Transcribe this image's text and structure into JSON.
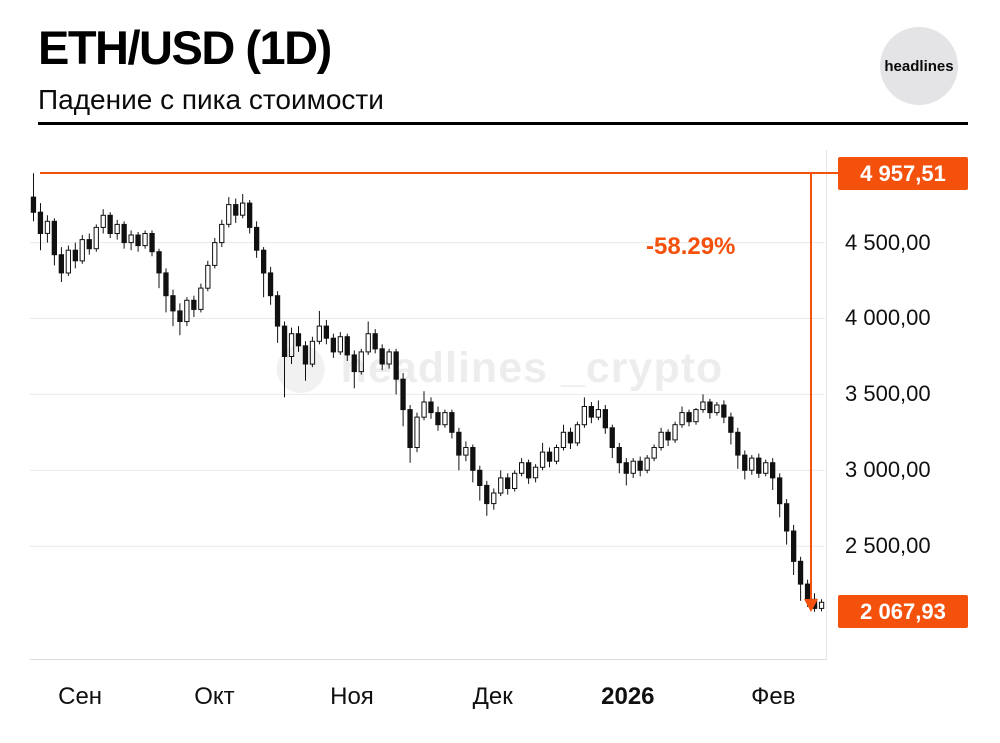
{
  "header": {
    "title": "ETH/USD (1D)",
    "subtitle": "Падение с пика стоимости"
  },
  "logo": {
    "text": "headlines"
  },
  "watermark": {
    "text": "headlines _crypto"
  },
  "colors": {
    "accent": "#f4510c",
    "grid": "#e9e9e9",
    "candle_up": "#ffffff",
    "candle_down": "#111111",
    "wick": "#111111",
    "axis_text": "#101010"
  },
  "chart_data": {
    "type": "candlestick",
    "symbol": "ETH/USD",
    "interval": "1D",
    "title": "ETH/USD (1D)",
    "ylim": [
      1750,
      5110
    ],
    "grid": true,
    "y_ticks": [
      {
        "label": "4 500,00",
        "value": 4500
      },
      {
        "label": "4 000,00",
        "value": 4000
      },
      {
        "label": "3 500,00",
        "value": 3500
      },
      {
        "label": "3 000,00",
        "value": 3000
      },
      {
        "label": "2 500,00",
        "value": 2500
      }
    ],
    "x_ticks": [
      {
        "label": "Сен",
        "pos": 0.063,
        "bold": false
      },
      {
        "label": "Окт",
        "pos": 0.232,
        "bold": false
      },
      {
        "label": "Ноя",
        "pos": 0.405,
        "bold": false
      },
      {
        "label": "Дек",
        "pos": 0.582,
        "bold": false
      },
      {
        "label": "2026",
        "pos": 0.752,
        "bold": true
      },
      {
        "label": "Фев",
        "pos": 0.935,
        "bold": false
      }
    ],
    "peak": {
      "label": "4 957,51",
      "value": 4957.51
    },
    "trough": {
      "label": "2 067,93",
      "value": 2067.93
    },
    "change_label": "-58.29%",
    "candles": [
      [
        4800,
        4957,
        4640,
        4700
      ],
      [
        4700,
        4760,
        4450,
        4560
      ],
      [
        4560,
        4680,
        4500,
        4640
      ],
      [
        4640,
        4660,
        4350,
        4420
      ],
      [
        4420,
        4470,
        4240,
        4300
      ],
      [
        4300,
        4480,
        4280,
        4450
      ],
      [
        4450,
        4500,
        4330,
        4380
      ],
      [
        4380,
        4550,
        4360,
        4520
      ],
      [
        4520,
        4560,
        4420,
        4460
      ],
      [
        4460,
        4620,
        4440,
        4600
      ],
      [
        4600,
        4720,
        4560,
        4680
      ],
      [
        4680,
        4700,
        4530,
        4560
      ],
      [
        4560,
        4650,
        4520,
        4620
      ],
      [
        4620,
        4640,
        4460,
        4500
      ],
      [
        4500,
        4580,
        4450,
        4550
      ],
      [
        4550,
        4570,
        4440,
        4480
      ],
      [
        4480,
        4580,
        4460,
        4560
      ],
      [
        4560,
        4580,
        4410,
        4440
      ],
      [
        4440,
        4460,
        4200,
        4300
      ],
      [
        4300,
        4330,
        4040,
        4150
      ],
      [
        4150,
        4190,
        3950,
        4050
      ],
      [
        4050,
        4100,
        3890,
        3980
      ],
      [
        3980,
        4140,
        3950,
        4120
      ],
      [
        4120,
        4150,
        4010,
        4060
      ],
      [
        4060,
        4230,
        4040,
        4200
      ],
      [
        4200,
        4380,
        4180,
        4350
      ],
      [
        4350,
        4530,
        4330,
        4500
      ],
      [
        4500,
        4650,
        4470,
        4620
      ],
      [
        4620,
        4800,
        4600,
        4750
      ],
      [
        4750,
        4790,
        4630,
        4680
      ],
      [
        4680,
        4820,
        4660,
        4760
      ],
      [
        4760,
        4780,
        4560,
        4600
      ],
      [
        4600,
        4640,
        4400,
        4450
      ],
      [
        4450,
        4470,
        4140,
        4300
      ],
      [
        4300,
        4340,
        4090,
        4150
      ],
      [
        4150,
        4180,
        3840,
        3950
      ],
      [
        3950,
        3980,
        3480,
        3750
      ],
      [
        3750,
        3940,
        3700,
        3900
      ],
      [
        3900,
        3950,
        3780,
        3820
      ],
      [
        3820,
        3850,
        3590,
        3700
      ],
      [
        3700,
        3880,
        3680,
        3850
      ],
      [
        3850,
        4050,
        3830,
        3950
      ],
      [
        3950,
        3990,
        3830,
        3870
      ],
      [
        3870,
        3900,
        3740,
        3780
      ],
      [
        3780,
        3910,
        3760,
        3880
      ],
      [
        3880,
        3900,
        3720,
        3760
      ],
      [
        3760,
        3790,
        3540,
        3650
      ],
      [
        3650,
        3800,
        3630,
        3780
      ],
      [
        3780,
        3980,
        3760,
        3900
      ],
      [
        3900,
        3930,
        3770,
        3800
      ],
      [
        3800,
        3830,
        3660,
        3700
      ],
      [
        3700,
        3800,
        3670,
        3780
      ],
      [
        3780,
        3800,
        3500,
        3600
      ],
      [
        3600,
        3640,
        3290,
        3400
      ],
      [
        3400,
        3430,
        3050,
        3150
      ],
      [
        3150,
        3380,
        3120,
        3350
      ],
      [
        3350,
        3520,
        3330,
        3450
      ],
      [
        3450,
        3480,
        3340,
        3380
      ],
      [
        3380,
        3420,
        3260,
        3300
      ],
      [
        3300,
        3400,
        3280,
        3380
      ],
      [
        3380,
        3400,
        3210,
        3250
      ],
      [
        3250,
        3280,
        3000,
        3100
      ],
      [
        3100,
        3190,
        3060,
        3150
      ],
      [
        3150,
        3170,
        2920,
        3000
      ],
      [
        3000,
        3030,
        2800,
        2900
      ],
      [
        2900,
        2930,
        2700,
        2780
      ],
      [
        2780,
        2880,
        2740,
        2850
      ],
      [
        2850,
        3000,
        2830,
        2950
      ],
      [
        2950,
        2980,
        2840,
        2880
      ],
      [
        2880,
        3000,
        2860,
        2980
      ],
      [
        2980,
        3080,
        2960,
        3050
      ],
      [
        3050,
        3070,
        2910,
        2950
      ],
      [
        2950,
        3040,
        2920,
        3020
      ],
      [
        3020,
        3180,
        3000,
        3120
      ],
      [
        3120,
        3150,
        3020,
        3060
      ],
      [
        3060,
        3170,
        3040,
        3150
      ],
      [
        3150,
        3300,
        3130,
        3250
      ],
      [
        3250,
        3280,
        3140,
        3180
      ],
      [
        3180,
        3320,
        3160,
        3300
      ],
      [
        3300,
        3480,
        3280,
        3420
      ],
      [
        3420,
        3450,
        3310,
        3350
      ],
      [
        3350,
        3460,
        3330,
        3400
      ],
      [
        3400,
        3430,
        3240,
        3280
      ],
      [
        3280,
        3300,
        3080,
        3150
      ],
      [
        3150,
        3180,
        2980,
        3050
      ],
      [
        3050,
        3080,
        2900,
        2980
      ],
      [
        2980,
        3080,
        2950,
        3060
      ],
      [
        3060,
        3090,
        2960,
        3000
      ],
      [
        3000,
        3100,
        2980,
        3080
      ],
      [
        3080,
        3170,
        3060,
        3150
      ],
      [
        3150,
        3280,
        3130,
        3250
      ],
      [
        3250,
        3270,
        3160,
        3200
      ],
      [
        3200,
        3320,
        3180,
        3300
      ],
      [
        3300,
        3420,
        3280,
        3380
      ],
      [
        3380,
        3400,
        3290,
        3320
      ],
      [
        3320,
        3410,
        3300,
        3400
      ],
      [
        3400,
        3500,
        3380,
        3450
      ],
      [
        3450,
        3470,
        3340,
        3380
      ],
      [
        3380,
        3450,
        3360,
        3430
      ],
      [
        3430,
        3460,
        3310,
        3350
      ],
      [
        3350,
        3380,
        3170,
        3250
      ],
      [
        3250,
        3280,
        3010,
        3100
      ],
      [
        3100,
        3130,
        2940,
        3000
      ],
      [
        3000,
        3100,
        2970,
        3080
      ],
      [
        3080,
        3110,
        2950,
        2980
      ],
      [
        2980,
        3070,
        2960,
        3050
      ],
      [
        3050,
        3080,
        2870,
        2950
      ],
      [
        2950,
        2980,
        2690,
        2780
      ],
      [
        2780,
        2810,
        2510,
        2600
      ],
      [
        2600,
        2640,
        2310,
        2400
      ],
      [
        2400,
        2430,
        2140,
        2250
      ],
      [
        2250,
        2280,
        2100,
        2150
      ],
      [
        2150,
        2190,
        2068,
        2090
      ],
      [
        2090,
        2150,
        2070,
        2130
      ]
    ]
  }
}
